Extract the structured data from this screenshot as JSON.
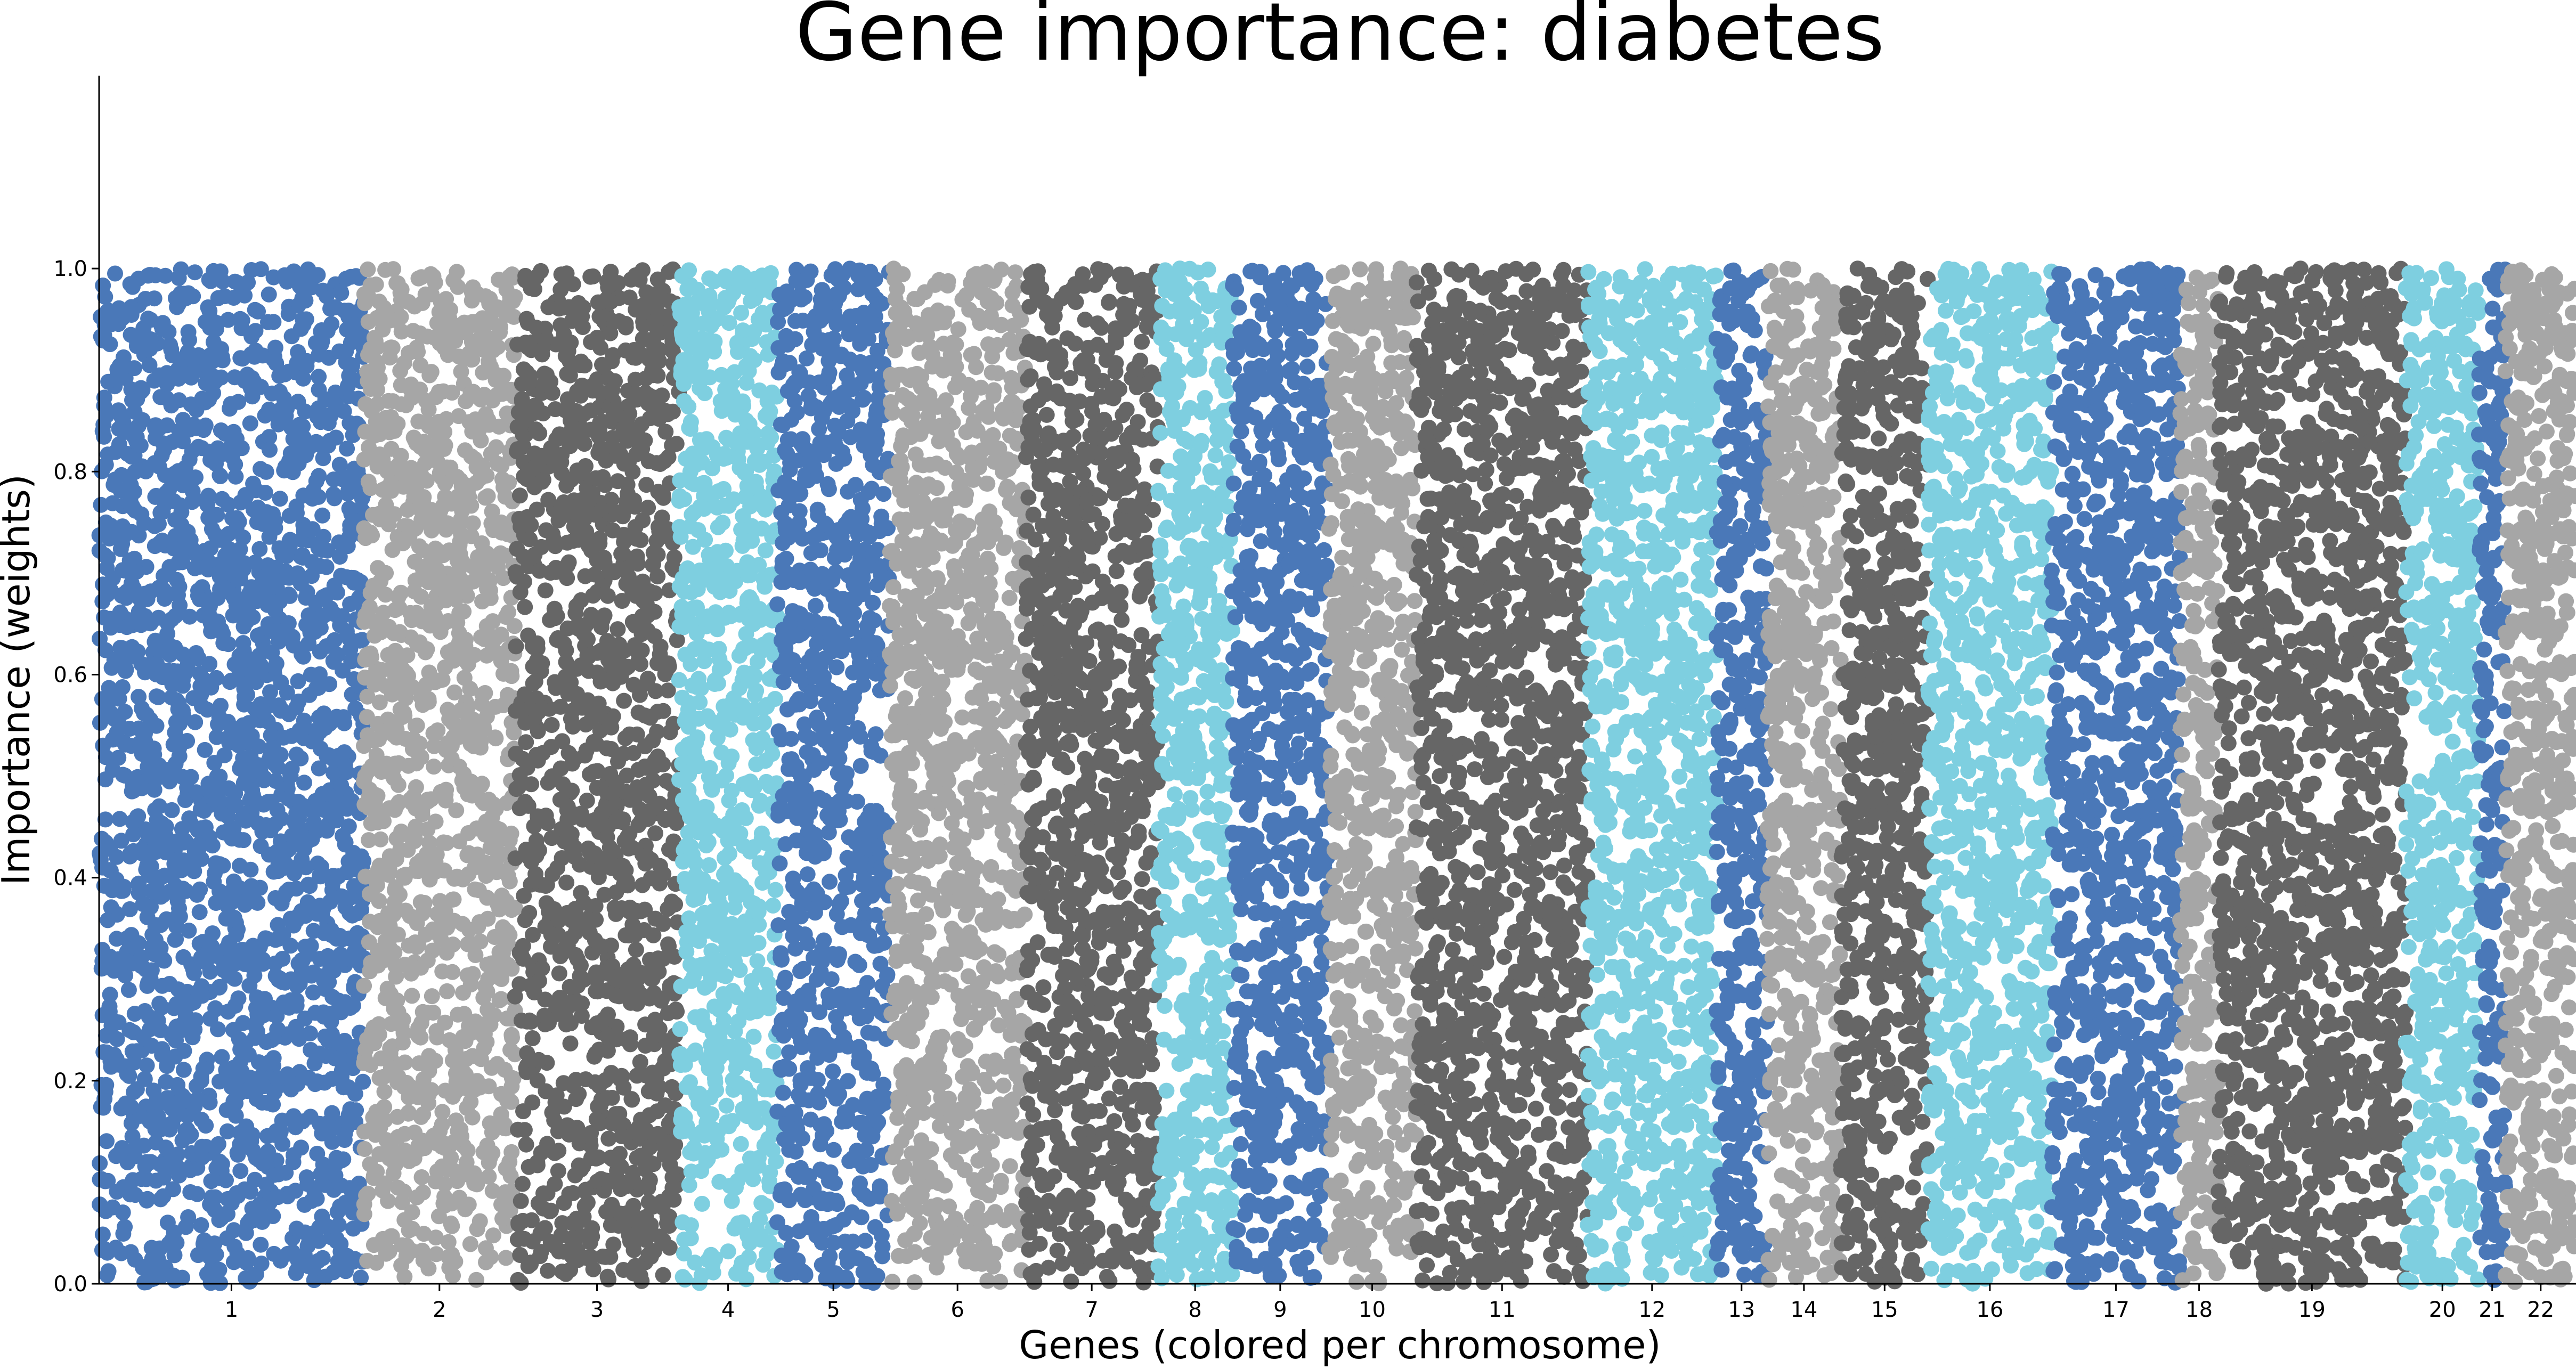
{
  "chart_data": {
    "type": "scatter",
    "title": "Gene importance: diabetes",
    "xlabel": "Genes (colored per chromosome)",
    "ylabel": "Importance (weights)",
    "ylim": [
      0,
      1.19
    ],
    "yticks": [
      "0.0",
      "0.2",
      "0.4",
      "0.6",
      "0.8",
      "1.0"
    ],
    "ytick_values": [
      0.0,
      0.2,
      0.4,
      0.6,
      0.8,
      1.0
    ],
    "grid": false,
    "legend": "none",
    "colors": [
      "#4a78b8",
      "#a6a6a6",
      "#666666",
      "#7ecfe0"
    ],
    "value_range": [
      0.0,
      1.0
    ],
    "series": [
      {
        "chromosome": "1",
        "color": "#4a78b8",
        "gene_index_range": [
          0,
          2100
        ]
      },
      {
        "chromosome": "2",
        "color": "#a6a6a6",
        "gene_index_range": [
          2100,
          3300
        ]
      },
      {
        "chromosome": "3",
        "color": "#666666",
        "gene_index_range": [
          3300,
          4600
        ]
      },
      {
        "chromosome": "4",
        "color": "#7ecfe0",
        "gene_index_range": [
          4600,
          5380
        ]
      },
      {
        "chromosome": "5",
        "color": "#4a78b8",
        "gene_index_range": [
          5380,
          6270
        ]
      },
      {
        "chromosome": "6",
        "color": "#a6a6a6",
        "gene_index_range": [
          6270,
          7350
        ]
      },
      {
        "chromosome": "7",
        "color": "#666666",
        "gene_index_range": [
          7350,
          8400
        ]
      },
      {
        "chromosome": "8",
        "color": "#7ecfe0",
        "gene_index_range": [
          8400,
          8990
        ]
      },
      {
        "chromosome": "9",
        "color": "#4a78b8",
        "gene_index_range": [
          8990,
          9750
        ]
      },
      {
        "chromosome": "10",
        "color": "#a6a6a6",
        "gene_index_range": [
          9750,
          10450
        ]
      },
      {
        "chromosome": "11",
        "color": "#666666",
        "gene_index_range": [
          10450,
          11810
        ]
      },
      {
        "chromosome": "12",
        "color": "#7ecfe0",
        "gene_index_range": [
          11810,
          12830
        ]
      },
      {
        "chromosome": "13",
        "color": "#4a78b8",
        "gene_index_range": [
          12830,
          13230
        ]
      },
      {
        "chromosome": "14",
        "color": "#a6a6a6",
        "gene_index_range": [
          13230,
          13820
        ]
      },
      {
        "chromosome": "15",
        "color": "#666666",
        "gene_index_range": [
          13820,
          14510
        ]
      },
      {
        "chromosome": "16",
        "color": "#7ecfe0",
        "gene_index_range": [
          14510,
          15490
        ]
      },
      {
        "chromosome": "17",
        "color": "#4a78b8",
        "gene_index_range": [
          15490,
          16510
        ]
      },
      {
        "chromosome": "18",
        "color": "#a6a6a6",
        "gene_index_range": [
          16510,
          16810
        ]
      },
      {
        "chromosome": "19",
        "color": "#666666",
        "gene_index_range": [
          16810,
          18300
        ]
      },
      {
        "chromosome": "20",
        "color": "#7ecfe0",
        "gene_index_range": [
          18300,
          18880
        ]
      },
      {
        "chromosome": "21",
        "color": "#4a78b8",
        "gene_index_range": [
          18880,
          19090
        ]
      },
      {
        "chromosome": "22",
        "color": "#a6a6a6",
        "gene_index_range": [
          19090,
          19650
        ]
      }
    ]
  }
}
